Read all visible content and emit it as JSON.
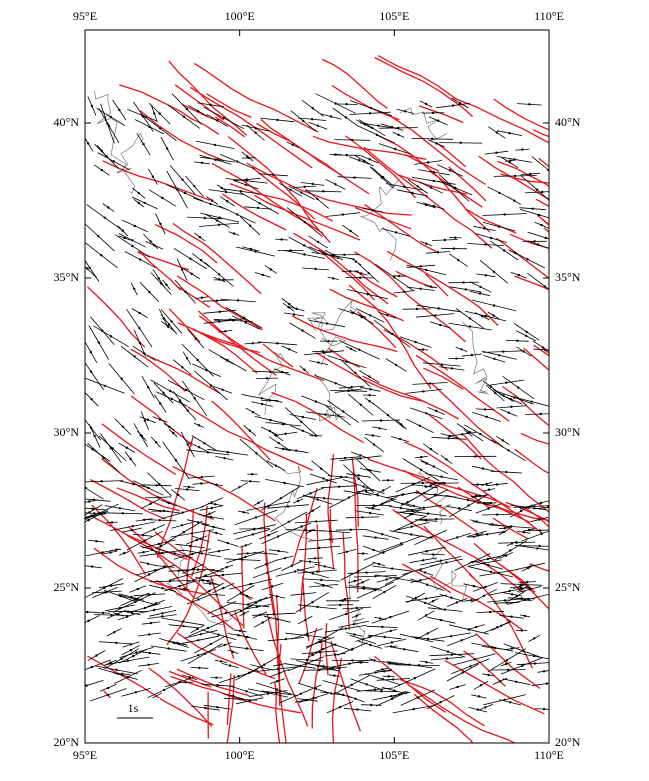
{
  "chart_data": {
    "type": "map",
    "xlim": [
      95,
      110
    ],
    "ylim": [
      20,
      43
    ],
    "xticks": [
      {
        "value": 95,
        "label": "95°E"
      },
      {
        "value": 100,
        "label": "100°E"
      },
      {
        "value": 105,
        "label": "105°E"
      },
      {
        "value": 110,
        "label": "110°E"
      }
    ],
    "yticks": [
      {
        "value": 20,
        "label": "20°N"
      },
      {
        "value": 25,
        "label": "25°N"
      },
      {
        "value": 30,
        "label": "30°N"
      },
      {
        "value": 35,
        "label": "35°N"
      },
      {
        "value": 40,
        "label": "40°N"
      }
    ],
    "scale_label": "1s"
  }
}
